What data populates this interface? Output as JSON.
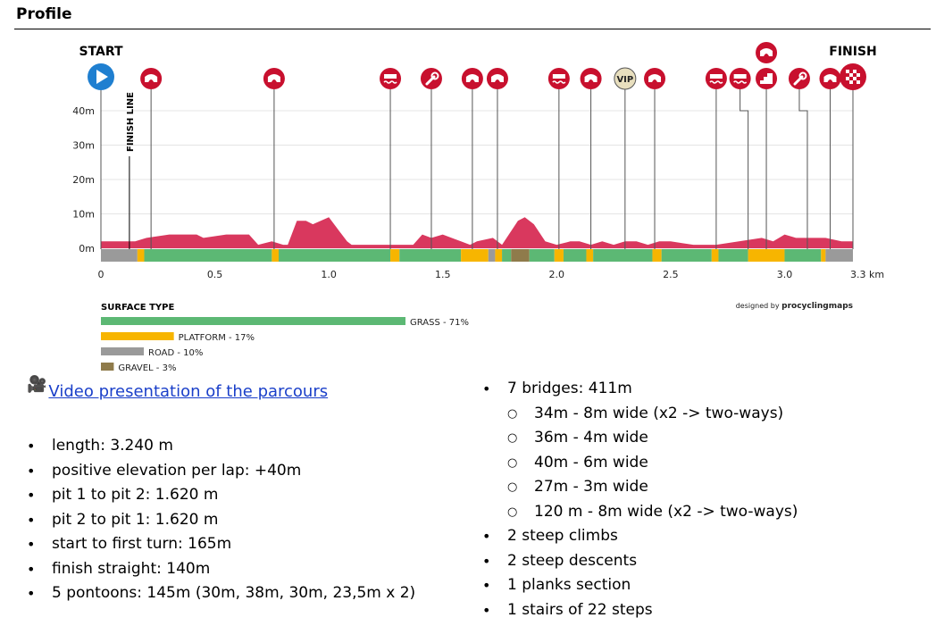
{
  "section_title": "Profile",
  "chart_data": {
    "type": "area",
    "start_label": "START",
    "finish_label": "FINISH",
    "finish_line_label": "FINISH LINE",
    "xlabel_unit": "3.3 km",
    "x_ticks": [
      "0",
      "0.5",
      "1.0",
      "1.5",
      "2.0",
      "2.5",
      "3.0"
    ],
    "y_ticks": [
      "0m",
      "10m",
      "20m",
      "30m",
      "40m"
    ],
    "xlim": [
      0,
      3.3
    ],
    "ylim": [
      0,
      40
    ],
    "elevation": {
      "x": [
        0,
        0.15,
        0.2,
        0.3,
        0.42,
        0.45,
        0.55,
        0.65,
        0.69,
        0.75,
        0.8,
        0.82,
        0.86,
        0.9,
        0.93,
        1.0,
        1.08,
        1.1,
        1.15,
        1.3,
        1.37,
        1.41,
        1.45,
        1.5,
        1.58,
        1.62,
        1.65,
        1.72,
        1.76,
        1.8,
        1.83,
        1.86,
        1.9,
        1.95,
        2.0,
        2.06,
        2.1,
        2.15,
        2.2,
        2.25,
        2.3,
        2.35,
        2.4,
        2.45,
        2.5,
        2.6,
        2.7,
        2.8,
        2.9,
        2.95,
        3.0,
        3.05,
        3.1,
        3.18,
        3.25,
        3.3
      ],
      "y": [
        2,
        2,
        3,
        4,
        4,
        3,
        4,
        4,
        1,
        2,
        1,
        1,
        8,
        8,
        7,
        9,
        2,
        1,
        1,
        1,
        1,
        4,
        3,
        4,
        2,
        1,
        2,
        3,
        1,
        5,
        8,
        9,
        7,
        2,
        1,
        2,
        2,
        1,
        2,
        1,
        2,
        2,
        1,
        2,
        2,
        1,
        1,
        2,
        3,
        2,
        4,
        3,
        3,
        3,
        2,
        2
      ]
    },
    "surface_strip": [
      {
        "type": "road",
        "from": 0,
        "to": 0.16
      },
      {
        "type": "platform",
        "from": 0.16,
        "to": 0.19
      },
      {
        "type": "grass",
        "from": 0.19,
        "to": 0.75
      },
      {
        "type": "platform",
        "from": 0.75,
        "to": 0.78
      },
      {
        "type": "grass",
        "from": 0.78,
        "to": 1.27
      },
      {
        "type": "platform",
        "from": 1.27,
        "to": 1.31
      },
      {
        "type": "grass",
        "from": 1.31,
        "to": 1.58
      },
      {
        "type": "platform",
        "from": 1.58,
        "to": 1.7
      },
      {
        "type": "road",
        "from": 1.7,
        "to": 1.73
      },
      {
        "type": "platform",
        "from": 1.73,
        "to": 1.76
      },
      {
        "type": "grass",
        "from": 1.76,
        "to": 1.8
      },
      {
        "type": "gravel",
        "from": 1.8,
        "to": 1.88
      },
      {
        "type": "grass",
        "from": 1.88,
        "to": 1.99
      },
      {
        "type": "platform",
        "from": 1.99,
        "to": 2.03
      },
      {
        "type": "grass",
        "from": 2.03,
        "to": 2.13
      },
      {
        "type": "platform",
        "from": 2.13,
        "to": 2.16
      },
      {
        "type": "grass",
        "from": 2.16,
        "to": 2.42
      },
      {
        "type": "platform",
        "from": 2.42,
        "to": 2.46
      },
      {
        "type": "grass",
        "from": 2.46,
        "to": 2.68
      },
      {
        "type": "platform",
        "from": 2.68,
        "to": 2.71
      },
      {
        "type": "grass",
        "from": 2.71,
        "to": 2.84
      },
      {
        "type": "platform",
        "from": 2.84,
        "to": 3.0
      },
      {
        "type": "grass",
        "from": 3.0,
        "to": 3.16
      },
      {
        "type": "platform",
        "from": 3.16,
        "to": 3.18
      },
      {
        "type": "road",
        "from": 3.18,
        "to": 3.3
      }
    ],
    "markers": [
      {
        "x": 0.22,
        "icon": "bridge-icon"
      },
      {
        "x": 0.76,
        "icon": "bridge-icon"
      },
      {
        "x": 1.27,
        "icon": "pontoon-icon"
      },
      {
        "x": 1.45,
        "icon": "pit-wrench-icon"
      },
      {
        "x": 1.63,
        "icon": "bridge-icon"
      },
      {
        "x": 1.74,
        "icon": "bridge-icon"
      },
      {
        "x": 2.01,
        "icon": "pontoon-icon"
      },
      {
        "x": 2.15,
        "icon": "bridge-icon"
      },
      {
        "x": 2.3,
        "icon": "vip-icon",
        "label": "VIP"
      },
      {
        "x": 2.43,
        "icon": "bridge-icon"
      },
      {
        "x": 2.7,
        "icon": "pontoon-icon"
      },
      {
        "x": 2.84,
        "icon": "pontoon-icon",
        "bent": true
      },
      {
        "x": 2.92,
        "icon": "stairs-icon"
      },
      {
        "x": 3.1,
        "icon": "pit-wrench-icon",
        "bent": true
      },
      {
        "x": 3.2,
        "icon": "bridge-icon"
      },
      {
        "x": 2.92,
        "icon": "bridge-icon",
        "row": "upper"
      }
    ],
    "colors": {
      "profile": "#d9385e",
      "marker": "#c8102e",
      "start": "#1f7fd0",
      "grass": "#5cb874",
      "platform": "#f7b500",
      "road": "#9a9a9a",
      "gravel": "#8f7b4b",
      "vip": "#e8dfbe"
    }
  },
  "surface_legend": {
    "title": "SURFACE TYPE",
    "items": [
      {
        "label": "GRASS - 71%",
        "value": 71,
        "color": "#5cb874"
      },
      {
        "label": "PLATFORM - 17%",
        "value": 17,
        "color": "#f7b500"
      },
      {
        "label": "ROAD - 10%",
        "value": 10,
        "color": "#9a9a9a"
      },
      {
        "label": "GRAVEL - 3%",
        "value": 3,
        "color": "#8f7b4b"
      }
    ]
  },
  "credit": {
    "prefix": "designed by",
    "brand": "procyclingmaps"
  },
  "video": {
    "icon": "movie-camera-icon",
    "link_text": "Video presentation of the parcours"
  },
  "facts_left": [
    "length: 3.240 m",
    "positive elevation per lap: +40m",
    "pit 1 to pit 2: 1.620 m",
    "pit 2 to pit 1: 1.620 m",
    "start to first turn: 165m",
    "finish straight: 140m",
    "5 pontoons: 145m (30m, 38m, 30m, 23,5m x 2)"
  ],
  "facts_right": [
    {
      "text": "7 bridges: 411m",
      "level": 0
    },
    {
      "text": "34m - 8m wide (x2 -> two-ways)",
      "level": 1
    },
    {
      "text": "36m - 4m wide",
      "level": 1
    },
    {
      "text": "40m - 6m wide",
      "level": 1
    },
    {
      "text": "27m - 3m wide",
      "level": 1
    },
    {
      "text": "120 m - 8m wide (x2 -> two-ways)",
      "level": 1
    },
    {
      "text": "2 steep climbs",
      "level": 0
    },
    {
      "text": "2 steep descents",
      "level": 0
    },
    {
      "text": "1 planks section",
      "level": 0
    },
    {
      "text": "1 stairs of 22 steps",
      "level": 0
    }
  ]
}
